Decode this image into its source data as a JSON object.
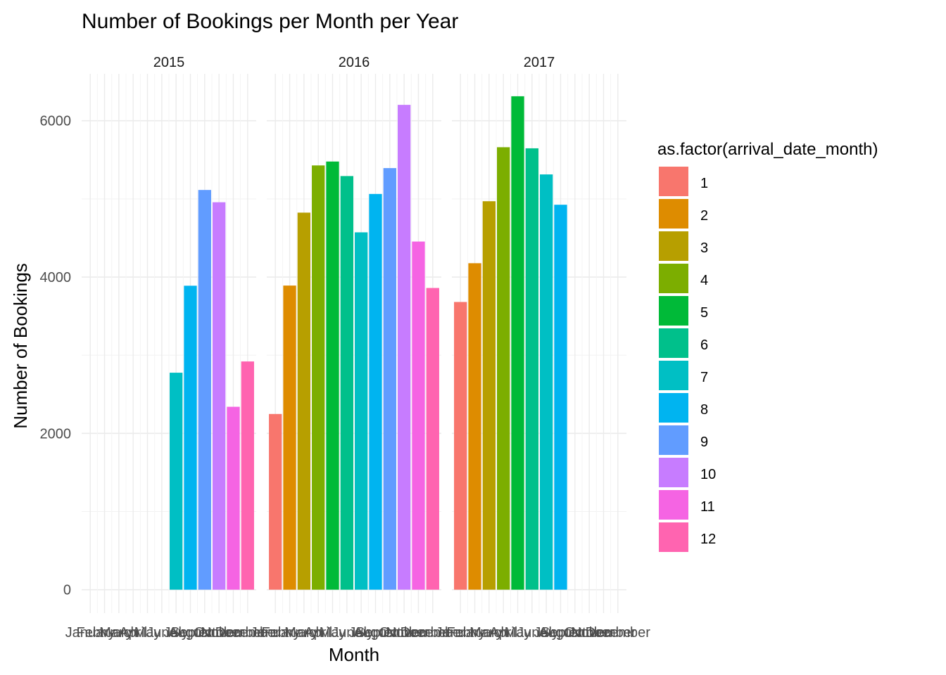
{
  "chart_data": {
    "type": "bar",
    "title": "Number of Bookings per Month per Year",
    "xlabel": "Month",
    "ylabel": "Number of Bookings",
    "ylim": [
      -300,
      6600
    ],
    "y_ticks": [
      0,
      2000,
      4000,
      6000
    ],
    "y_tick_labels": [
      "0",
      "2000",
      "4000",
      "6000"
    ],
    "grid": true,
    "facets": [
      "2015",
      "2016",
      "2017"
    ],
    "months": [
      "Jan",
      "Feb",
      "Mar",
      "Apr",
      "May",
      "Jun",
      "Jul",
      "Aug",
      "Sep",
      "Oct",
      "Nov",
      "Dec"
    ],
    "x_tick_labels": [
      "January",
      "February",
      "March",
      "April",
      "May",
      "June",
      "July",
      "August",
      "September",
      "October",
      "November",
      "December"
    ],
    "series": [
      {
        "facet": "2015",
        "values": [
          null,
          null,
          null,
          null,
          null,
          null,
          2776,
          3889,
          5114,
          4957,
          2340,
          2920
        ]
      },
      {
        "facet": "2016",
        "values": [
          2248,
          3891,
          4824,
          5428,
          5478,
          5292,
          4572,
          5063,
          5394,
          6203,
          4454,
          3860
        ]
      },
      {
        "facet": "2017",
        "values": [
          3681,
          4177,
          4970,
          5661,
          6313,
          5647,
          5313,
          4925,
          null,
          null,
          null,
          null
        ]
      }
    ],
    "legend": {
      "title": "as.factor(arrival_date_month)",
      "position": "right",
      "entries": [
        "1",
        "2",
        "3",
        "4",
        "5",
        "6",
        "7",
        "8",
        "9",
        "10",
        "11",
        "12"
      ]
    },
    "colors": [
      "#F8766D",
      "#DE8C00",
      "#B79F00",
      "#7CAE00",
      "#00BA38",
      "#00C08B",
      "#00BFC4",
      "#00B4F0",
      "#619CFF",
      "#C77CFF",
      "#F564E3",
      "#FF64B0"
    ]
  }
}
